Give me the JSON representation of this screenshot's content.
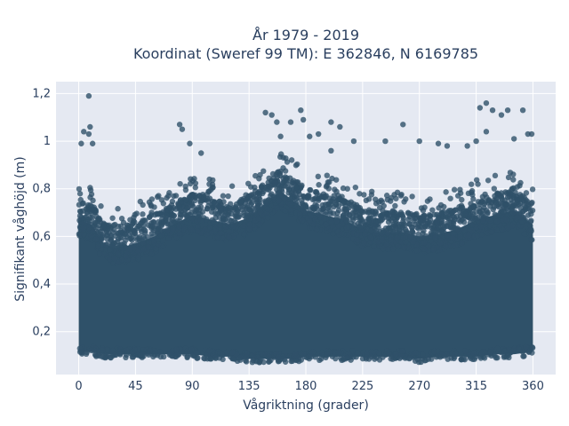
{
  "chart_data": {
    "type": "scatter",
    "title_line1": "År 1979 - 2019",
    "title_line2": "Koordinat (Sweref 99 TM): E 362846, N 6169785",
    "xlabel": "Vågriktning (grader)",
    "ylabel": "Signifikant våghöjd (m)",
    "xlim": [
      -18,
      378
    ],
    "ylim": [
      0.02,
      1.25
    ],
    "x_ticks": [
      0,
      45,
      90,
      135,
      180,
      225,
      270,
      315,
      360
    ],
    "x_tick_labels": [
      "0",
      "45",
      "90",
      "135",
      "180",
      "225",
      "270",
      "315",
      "360"
    ],
    "y_ticks": [
      0.2,
      0.4,
      0.6,
      0.8,
      1.0,
      1.2
    ],
    "y_tick_labels": [
      "0,2",
      "0,4",
      "0,6",
      "0,8",
      "1",
      "1,2"
    ],
    "grid": true,
    "legend": "none",
    "colors": {
      "marker": "#2f5169",
      "plot_bg": "#e5e9f2",
      "grid": "#ffffff",
      "text": "#2a3f5f"
    },
    "density_envelope": {
      "description_points": "direction (deg) vs upper height (m) of the dense cloud",
      "x": [
        0,
        10,
        20,
        30,
        45,
        60,
        75,
        90,
        105,
        120,
        135,
        150,
        160,
        170,
        180,
        195,
        210,
        225,
        240,
        255,
        270,
        285,
        300,
        315,
        330,
        345,
        360
      ],
      "upper": [
        0.72,
        0.7,
        0.62,
        0.6,
        0.62,
        0.65,
        0.7,
        0.74,
        0.72,
        0.7,
        0.73,
        0.8,
        0.84,
        0.8,
        0.76,
        0.74,
        0.72,
        0.68,
        0.66,
        0.67,
        0.65,
        0.66,
        0.68,
        0.72,
        0.74,
        0.76,
        0.7
      ],
      "lower": [
        0.1,
        0.1,
        0.09,
        0.09,
        0.09,
        0.09,
        0.09,
        0.09,
        0.08,
        0.08,
        0.07,
        0.07,
        0.07,
        0.07,
        0.08,
        0.08,
        0.08,
        0.08,
        0.08,
        0.08,
        0.07,
        0.08,
        0.08,
        0.08,
        0.09,
        0.09,
        0.1
      ]
    },
    "outliers": [
      {
        "x": 4,
        "y": 1.04
      },
      {
        "x": 8,
        "y": 1.03
      },
      {
        "x": 9,
        "y": 1.06
      },
      {
        "x": 8,
        "y": 1.19
      },
      {
        "x": 11,
        "y": 0.99
      },
      {
        "x": 2,
        "y": 0.99
      },
      {
        "x": 80,
        "y": 1.07
      },
      {
        "x": 82,
        "y": 1.05
      },
      {
        "x": 88,
        "y": 0.99
      },
      {
        "x": 97,
        "y": 0.95
      },
      {
        "x": 148,
        "y": 1.12
      },
      {
        "x": 153,
        "y": 1.11
      },
      {
        "x": 157,
        "y": 1.08
      },
      {
        "x": 160,
        "y": 1.02
      },
      {
        "x": 168,
        "y": 1.08
      },
      {
        "x": 176,
        "y": 1.13
      },
      {
        "x": 178,
        "y": 1.09
      },
      {
        "x": 183,
        "y": 1.02
      },
      {
        "x": 190,
        "y": 1.03
      },
      {
        "x": 200,
        "y": 1.08
      },
      {
        "x": 207,
        "y": 1.06
      },
      {
        "x": 218,
        "y": 1.0
      },
      {
        "x": 243,
        "y": 1.0
      },
      {
        "x": 257,
        "y": 1.07
      },
      {
        "x": 270,
        "y": 1.0
      },
      {
        "x": 285,
        "y": 0.99
      },
      {
        "x": 292,
        "y": 0.98
      },
      {
        "x": 308,
        "y": 0.98
      },
      {
        "x": 318,
        "y": 1.14
      },
      {
        "x": 323,
        "y": 1.16
      },
      {
        "x": 328,
        "y": 1.13
      },
      {
        "x": 335,
        "y": 1.11
      },
      {
        "x": 340,
        "y": 1.13
      },
      {
        "x": 352,
        "y": 1.13
      },
      {
        "x": 356,
        "y": 1.03
      },
      {
        "x": 359,
        "y": 1.03
      },
      {
        "x": 323,
        "y": 1.04
      },
      {
        "x": 345,
        "y": 1.01
      },
      {
        "x": 315,
        "y": 1.0
      },
      {
        "x": 200,
        "y": 0.96
      }
    ]
  }
}
